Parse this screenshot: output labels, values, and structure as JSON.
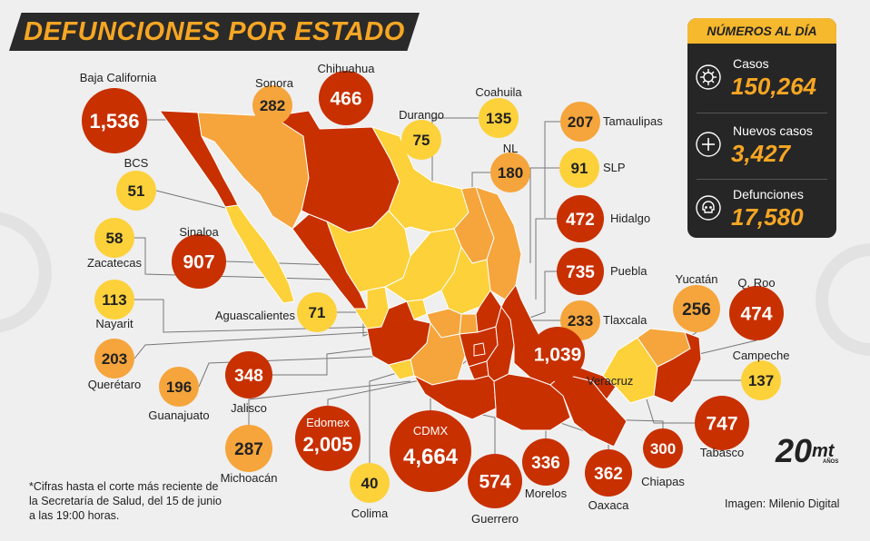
{
  "title": "DEFUNCIONES POR ESTADO",
  "summary": {
    "header": "NÚMEROS AL DÍA",
    "items": [
      {
        "label": "Casos",
        "value": "150,264",
        "icon": "virus-icon"
      },
      {
        "label": "Nuevos casos",
        "value": "3,427",
        "icon": "plus-icon"
      },
      {
        "label": "Defunciones",
        "value": "17,580",
        "icon": "skull-icon"
      }
    ]
  },
  "colors": {
    "red": "#c83000",
    "orange": "#f5a53c",
    "yellow": "#fcd13a",
    "dark": "#262626",
    "accent": "#f6a623"
  },
  "states": [
    {
      "name": "Baja California",
      "value": "1,536",
      "level": "red"
    },
    {
      "name": "Sonora",
      "value": "282",
      "level": "orange"
    },
    {
      "name": "Chihuahua",
      "value": "466",
      "level": "red"
    },
    {
      "name": "Durango",
      "value": "75",
      "level": "yellow"
    },
    {
      "name": "Coahuila",
      "value": "135",
      "level": "yellow"
    },
    {
      "name": "Tamaulipas",
      "value": "207",
      "level": "orange"
    },
    {
      "name": "NL",
      "value": "180",
      "level": "orange"
    },
    {
      "name": "SLP",
      "value": "91",
      "level": "yellow"
    },
    {
      "name": "BCS",
      "value": "51",
      "level": "yellow"
    },
    {
      "name": "Hidalgo",
      "value": "472",
      "level": "red"
    },
    {
      "name": "Sinaloa",
      "value": "907",
      "level": "red"
    },
    {
      "name": "Zacatecas",
      "value": "58",
      "level": "yellow"
    },
    {
      "name": "Puebla",
      "value": "735",
      "level": "red"
    },
    {
      "name": "Yucatán",
      "value": "256",
      "level": "orange"
    },
    {
      "name": "Q. Roo",
      "value": "474",
      "level": "red"
    },
    {
      "name": "Nayarit",
      "value": "113",
      "level": "yellow"
    },
    {
      "name": "Aguascalientes",
      "value": "71",
      "level": "yellow"
    },
    {
      "name": "Tlaxcala",
      "value": "233",
      "level": "orange"
    },
    {
      "name": "Campeche",
      "value": "137",
      "level": "yellow"
    },
    {
      "name": "Querétaro",
      "value": "203",
      "level": "orange"
    },
    {
      "name": "Veracruz",
      "value": "1,039",
      "level": "red"
    },
    {
      "name": "Jalisco",
      "value": "348",
      "level": "red"
    },
    {
      "name": "Guanajuato",
      "value": "196",
      "level": "orange"
    },
    {
      "name": "Tabasco",
      "value": "747",
      "level": "red"
    },
    {
      "name": "Edomex",
      "value": "2,005",
      "level": "red"
    },
    {
      "name": "CDMX",
      "value": "4,664",
      "level": "red"
    },
    {
      "name": "Michoacán",
      "value": "287",
      "level": "orange"
    },
    {
      "name": "Morelos",
      "value": "336",
      "level": "red"
    },
    {
      "name": "Oaxaca",
      "value": "362",
      "level": "red"
    },
    {
      "name": "Chiapas",
      "value": "300",
      "level": "red"
    },
    {
      "name": "Colima",
      "value": "40",
      "level": "yellow"
    },
    {
      "name": "Guerrero",
      "value": "574",
      "level": "red"
    }
  ],
  "footnote": "*Cifras hasta el corte más reciente de la Secretaría de Salud, del 15 de junio a las 19:00 horas.",
  "credit": "Imagen: Milenio Digital",
  "logo": {
    "number": "20",
    "brand": "mt",
    "suffix": "AÑOS"
  }
}
